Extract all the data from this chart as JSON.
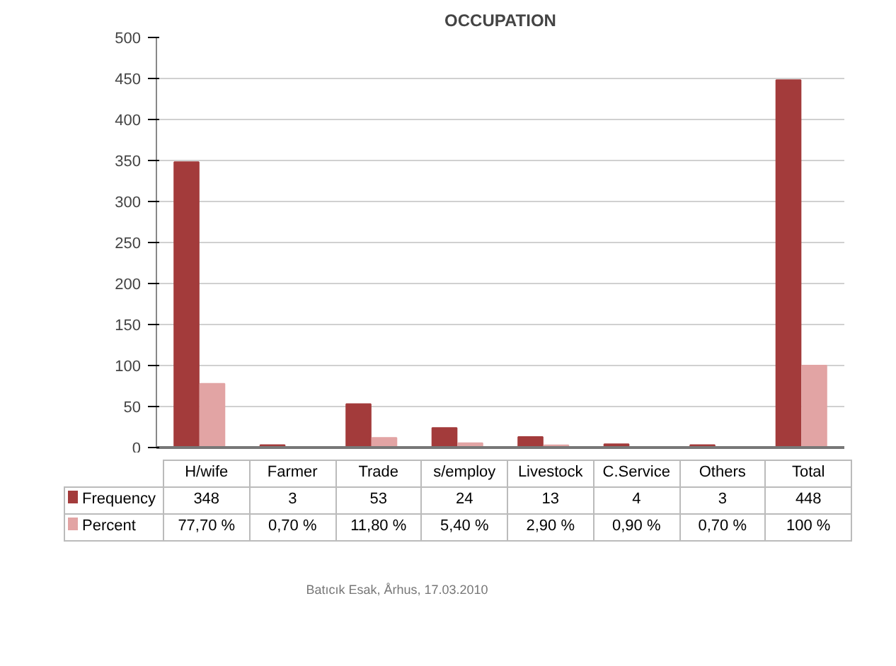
{
  "chart_data": {
    "type": "bar",
    "title": "OCCUPATION",
    "categories": [
      "H/wife",
      "Farmer",
      "Trade",
      "s/employ",
      "Livestock",
      "C.Service",
      "Others",
      "Total"
    ],
    "series": [
      {
        "name": "Frequency",
        "color": "#a33b3b",
        "values": [
          348,
          3,
          53,
          24,
          13,
          4,
          3,
          448
        ],
        "value_labels": [
          "348",
          "3",
          "53",
          "24",
          "13",
          "4",
          "3",
          "448"
        ]
      },
      {
        "name": "Percent",
        "color": "#e2a4a4",
        "values": [
          77.7,
          0.7,
          11.8,
          5.4,
          2.9,
          0.9,
          0.7,
          100
        ],
        "value_labels": [
          "77,70 %",
          "0,70 %",
          "11,80 %",
          "5,40 %",
          "2,90 %",
          "0,90 %",
          "0,70 %",
          "100 %"
        ]
      }
    ],
    "ylim": [
      0,
      500
    ],
    "yticks": [
      0,
      50,
      100,
      150,
      200,
      250,
      300,
      350,
      400,
      450,
      500
    ],
    "grid": "y",
    "legend": "bottom",
    "annotations": [
      "Batıcık Esak, Århus, 17.03.2010"
    ]
  }
}
